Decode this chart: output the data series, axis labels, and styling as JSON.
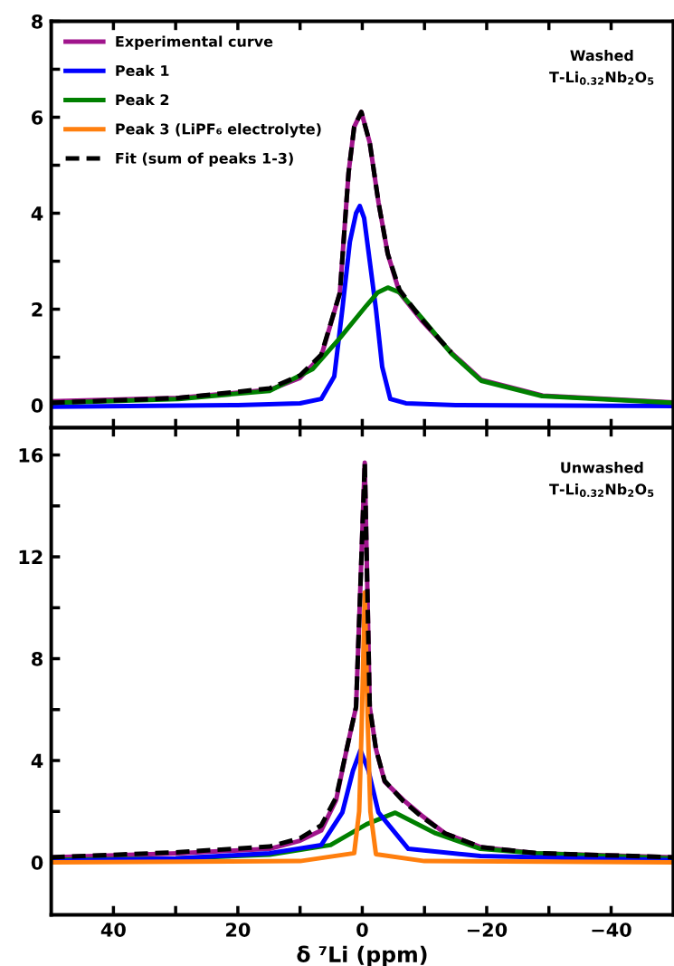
{
  "chart_data": [
    {
      "type": "line",
      "xlim": [
        50,
        -50
      ],
      "ylim": [
        -0.47,
        8
      ],
      "xticks": [
        {
          "value": 40,
          "label": null
        },
        {
          "value": 30,
          "label": null
        },
        {
          "value": 20,
          "label": null
        },
        {
          "value": 10,
          "label": null
        },
        {
          "value": 0,
          "label": null
        },
        {
          "value": -10,
          "label": null
        },
        {
          "value": -20,
          "label": null
        },
        {
          "value": -30,
          "label": null
        },
        {
          "value": -40,
          "label": null
        }
      ],
      "yticks": [
        0,
        {
          "value": 1,
          "label": null
        },
        2,
        {
          "value": 3,
          "label": null
        },
        4,
        {
          "value": 5,
          "label": null
        },
        6,
        {
          "value": 7,
          "label": null
        },
        8
      ],
      "tick_labels": "y",
      "legend": "top left",
      "grid": false,
      "annotations": [
        "Washed\nT-Li$_{0.32}$Nb$_{2}$O$_{5}$"
      ],
      "series": [
        {
          "name": "Experimental curve",
          "color": "#a0148c",
          "x": [
            50,
            29.5,
            14.9,
            10,
            6.6,
            3.6,
            2.2,
            1.3,
            0.15,
            -1.2,
            -2.6,
            -4.1,
            -6,
            -9.5,
            -14.3,
            -19.1,
            -29,
            -50
          ],
          "values": [
            0.08,
            0.15,
            0.32,
            0.57,
            1.02,
            2.34,
            4.85,
            5.8,
            6.11,
            5.47,
            4.23,
            3.15,
            2.34,
            1.77,
            1.1,
            0.53,
            0.2,
            0.06
          ]
        },
        {
          "name": "Peak 1",
          "color": "#0000ff",
          "x": [
            50,
            20,
            10,
            6.6,
            4.5,
            3.2,
            2,
            1,
            0.4,
            -0.3,
            -1.2,
            -2.2,
            -3.2,
            -4.5,
            -7,
            -15,
            -50
          ],
          "values": [
            -0.03,
            0,
            0.04,
            0.13,
            0.6,
            2.0,
            3.4,
            4.0,
            4.15,
            3.9,
            3.0,
            2.0,
            0.8,
            0.13,
            0.04,
            0,
            -0.02
          ]
        },
        {
          "name": "Peak 2",
          "color": "#008000",
          "x": [
            50,
            29.5,
            14.9,
            8,
            3.6,
            -0.7,
            -2.5,
            -4.1,
            -6,
            -9.5,
            -14.3,
            -19.1,
            -28.9,
            -50
          ],
          "values": [
            0.05,
            0.13,
            0.3,
            0.75,
            1.4,
            2.08,
            2.35,
            2.45,
            2.35,
            1.83,
            1.08,
            0.51,
            0.19,
            0.05
          ]
        },
        {
          "name": "Fit (sum of peaks 1-3)",
          "color": "#000000",
          "line_style": "dashed",
          "x": [
            50,
            29.5,
            14.9,
            10,
            6.6,
            3.6,
            2.2,
            1.3,
            0.15,
            -1.2,
            -2.6,
            -4.1,
            -6,
            -9.5,
            -14.3
          ],
          "values": [
            0.05,
            0.15,
            0.35,
            0.62,
            1.05,
            2.34,
            4.85,
            5.8,
            6.11,
            5.47,
            4.23,
            3.15,
            2.4,
            1.8,
            1.1
          ]
        }
      ]
    },
    {
      "type": "line",
      "xlim": [
        50,
        -50
      ],
      "ylim": [
        -2.06,
        17.07
      ],
      "xlabel": "δ ⁷Li (ppm)",
      "xticks": [
        40,
        {
          "value": 30,
          "label": null
        },
        20,
        {
          "value": 10,
          "label": null
        },
        0,
        {
          "value": -10,
          "label": null
        },
        {
          "value": -20,
          "label": "−20"
        },
        {
          "value": -30,
          "label": null
        },
        {
          "value": -40,
          "label": "−40"
        }
      ],
      "yticks": [
        0,
        {
          "value": 2,
          "label": null
        },
        4,
        {
          "value": 6,
          "label": null
        },
        8,
        {
          "value": 10,
          "label": null
        },
        12,
        {
          "value": 14,
          "label": null
        },
        16
      ],
      "grid": false,
      "annotations": [
        "Unwashed\nT-Li$_{0.32}$Nb$_{2}$O$_{5}$"
      ],
      "series": [
        {
          "name": "Experimental curve",
          "color": "#a0148c",
          "x": [
            50,
            29.5,
            14.9,
            10,
            6.6,
            4.2,
            2.5,
            1,
            0.3,
            -0.4,
            -1.2,
            -2.2,
            -3.6,
            -6.6,
            -9.5,
            -13.3,
            -19,
            -28,
            -50
          ],
          "values": [
            0.2,
            0.36,
            0.53,
            0.85,
            1.25,
            2.45,
            4.45,
            6.1,
            10.85,
            15.7,
            6.1,
            4.45,
            3.17,
            2.45,
            1.85,
            1.14,
            0.6,
            0.36,
            0.2
          ]
        },
        {
          "name": "Peak 2",
          "color": "#008000",
          "x": [
            50,
            30,
            14.9,
            5.1,
            -0.7,
            -5.3,
            -11.8,
            -19,
            -28,
            -50
          ],
          "values": [
            0.1,
            0.15,
            0.3,
            0.68,
            1.5,
            1.95,
            1.14,
            0.53,
            0.36,
            0.15
          ]
        },
        {
          "name": "Peak 1",
          "color": "#0000ff",
          "x": [
            50,
            30,
            14.9,
            6.6,
            3.2,
            1.5,
            0.3,
            -1,
            -2.6,
            -7.4,
            -19,
            -50
          ],
          "values": [
            0.05,
            0.15,
            0.36,
            0.68,
            1.96,
            3.6,
            4.4,
            3.6,
            1.96,
            0.53,
            0.25,
            0.08
          ]
        },
        {
          "name": "Peak 3 (LiPF₆ electrolyte)",
          "color": "#ff7f0e",
          "x": [
            50,
            10,
            1.3,
            0.5,
            0.1,
            -0.4,
            -0.9,
            -1.3,
            -2.2,
            -10,
            -50
          ],
          "values": [
            0,
            0.05,
            0.36,
            2.0,
            5.3,
            10.6,
            5.3,
            2.0,
            0.32,
            0.05,
            0
          ]
        },
        {
          "name": "Fit (sum of peaks 1-3)",
          "color": "#000000",
          "line_style": "dashed",
          "x": [
            50,
            29.5,
            14.9,
            10,
            6.6,
            4.2,
            2.5,
            1,
            0.3,
            -0.4,
            -1.2,
            -2.2,
            -3.6,
            -6.6,
            -9.5,
            -13.3,
            -19,
            -28,
            -50
          ],
          "values": [
            0.2,
            0.4,
            0.62,
            0.95,
            1.45,
            2.55,
            4.45,
            6.1,
            10.85,
            15.7,
            6.1,
            4.45,
            3.2,
            2.4,
            1.8,
            1.14,
            0.6,
            0.36,
            0.2
          ]
        }
      ]
    }
  ]
}
